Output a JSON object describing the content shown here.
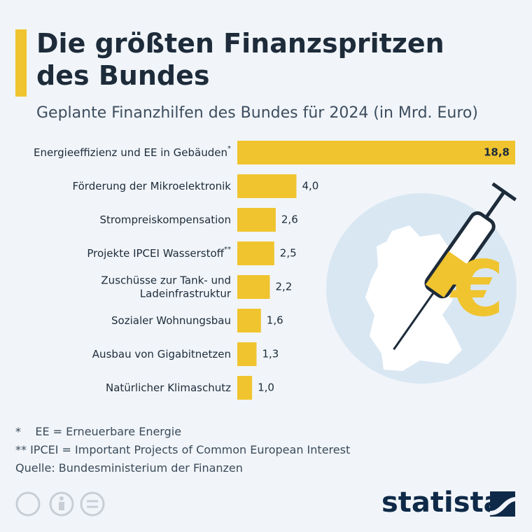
{
  "chart_data": {
    "type": "bar",
    "orientation": "horizontal",
    "title": "Die größten Finanzspritzen des Bundes",
    "subtitle": "Geplante Finanzhilfen des Bundes für 2024 (in Mrd. Euro)",
    "categories": [
      "Energieeffizienz und EE in Gebäuden*",
      "Förderung der Mikroelektronik",
      "Strompreiskompensation",
      "Projekte IPCEI Wasserstoff**",
      "Zuschüsse zur Tank- und\nLadeinfrastruktur",
      "Sozialer Wohnungsbau",
      "Ausbau von Gigabitnetzen",
      "Natürlicher Klimaschutz"
    ],
    "values": [
      18.8,
      4.0,
      2.6,
      2.5,
      2.2,
      1.6,
      1.3,
      1.0
    ],
    "value_labels": [
      "18,8",
      "4,0",
      "2,6",
      "2,5",
      "2,2",
      "1,6",
      "1,3",
      "1,0"
    ],
    "color": "#f0c42f",
    "footnotes": [
      "*    EE = Erneuerbare Energie",
      "** IPCEI = Important Projects of Common European Interest",
      "Quelle: Bundesministerium der Finanzen"
    ],
    "logo": "statista"
  }
}
